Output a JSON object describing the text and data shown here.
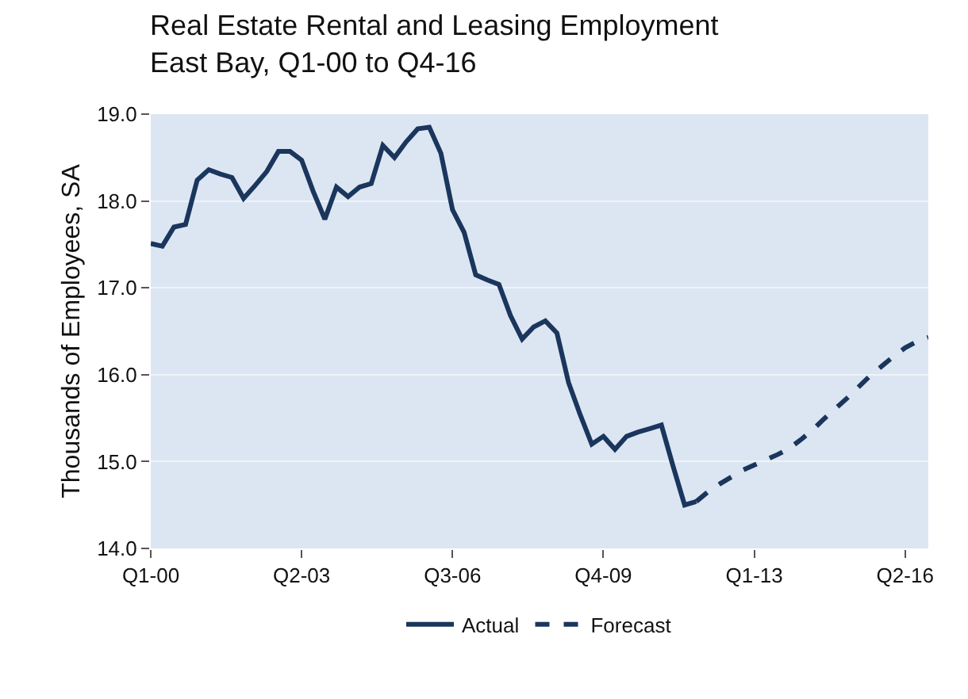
{
  "chart_data": {
    "type": "line",
    "title": "Real Estate Rental and Leasing Employment\nEast Bay, Q1-00 to Q4-16",
    "ylabel": "Thousands of Employees, SA",
    "categories": [
      "Q1-00",
      null,
      null,
      null,
      null,
      null,
      null,
      null,
      null,
      null,
      null,
      null,
      null,
      "Q2-03",
      null,
      null,
      null,
      null,
      null,
      null,
      null,
      null,
      null,
      null,
      null,
      null,
      "Q3-06",
      null,
      null,
      null,
      null,
      null,
      null,
      null,
      null,
      null,
      null,
      null,
      null,
      "Q4-09",
      null,
      null,
      null,
      null,
      null,
      null,
      null,
      null,
      null,
      null,
      null,
      null,
      "Q1-13",
      null,
      null,
      null,
      null,
      null,
      null,
      null,
      null,
      null,
      null,
      null,
      null,
      "Q2-16",
      null,
      null
    ],
    "ylim": [
      14.0,
      19.0
    ],
    "yticks": [
      {
        "value": 14,
        "label": "14.0"
      },
      {
        "value": 15,
        "label": "15.0"
      },
      {
        "value": 16,
        "label": "16.0"
      },
      {
        "value": 17,
        "label": "17.0"
      },
      {
        "value": 18,
        "label": "18.0"
      },
      {
        "value": 19,
        "label": "19.0"
      }
    ],
    "grid": "y",
    "legend": "bottom",
    "marker": "none",
    "series": [
      {
        "name": "Actual",
        "color": "#1b365d",
        "line_style": "solid",
        "values": [
          17.51,
          17.48,
          17.7,
          17.73,
          18.24,
          18.36,
          18.31,
          18.27,
          18.03,
          18.18,
          18.34,
          18.57,
          18.57,
          18.47,
          18.11,
          17.79,
          18.16,
          18.05,
          18.16,
          18.2,
          18.64,
          18.5,
          18.68,
          18.83,
          18.85,
          18.55,
          17.9,
          17.64,
          17.15,
          17.09,
          17.04,
          16.68,
          16.41,
          16.55,
          16.62,
          16.48,
          15.91,
          15.54,
          15.2,
          15.29,
          15.14,
          15.29,
          15.34,
          15.38,
          15.42,
          14.95,
          14.5,
          14.54,
          null,
          null,
          null,
          null,
          null,
          null,
          null,
          null,
          null,
          null,
          null,
          null,
          null,
          null,
          null,
          null,
          null,
          null,
          null,
          null
        ]
      },
      {
        "name": "Forecast",
        "color": "#1b365d",
        "line_style": "dashed",
        "values": [
          null,
          null,
          null,
          null,
          null,
          null,
          null,
          null,
          null,
          null,
          null,
          null,
          null,
          null,
          null,
          null,
          null,
          null,
          null,
          null,
          null,
          null,
          null,
          null,
          null,
          null,
          null,
          null,
          null,
          null,
          null,
          null,
          null,
          null,
          null,
          null,
          null,
          null,
          null,
          null,
          null,
          null,
          null,
          null,
          null,
          null,
          null,
          14.54,
          14.65,
          14.74,
          14.82,
          14.9,
          14.96,
          15.02,
          15.08,
          15.15,
          15.25,
          15.36,
          15.49,
          15.61,
          15.73,
          15.86,
          15.99,
          16.1,
          16.21,
          16.31,
          16.38,
          16.43
        ]
      }
    ]
  }
}
